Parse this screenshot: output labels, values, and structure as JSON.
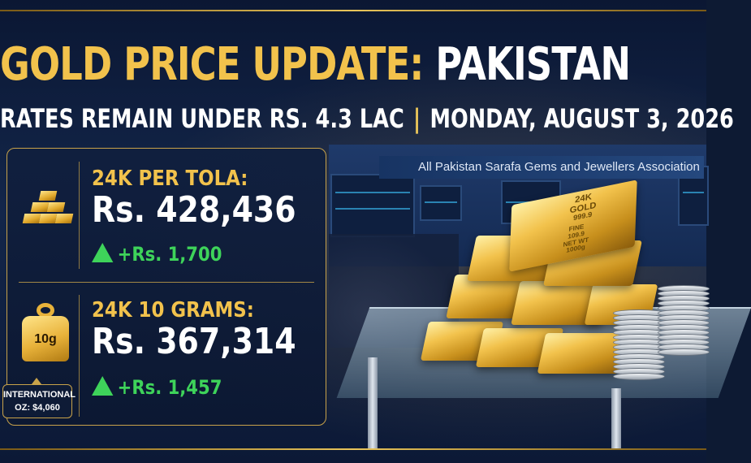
{
  "header": {
    "title_gold": "GOLD PRICE UPDATE: ",
    "title_white": "PAKISTAN",
    "subtitle_left": "RATES REMAIN UNDER RS. 4.3 LAC",
    "subtitle_sep": "|",
    "subtitle_right": "MONDAY, AUGUST 3, 2026"
  },
  "scene": {
    "banner": "All Pakistan Sarafa Gems and Jewellers Association",
    "bar_stamp_1": "24K",
    "bar_stamp_2": "GOLD",
    "bar_stamp_3": "999.9",
    "bar_stamp_4": "FINE",
    "bar_stamp_5": "109.9",
    "bar_stamp_6": "NET WT",
    "bar_stamp_7": "1000g"
  },
  "rates": [
    {
      "label": "24K PER TOLA:",
      "price": "Rs. 428,436",
      "change": "+Rs. 1,700",
      "icon": "gold-bars-icon"
    },
    {
      "label": "24K 10 GRAMS:",
      "price": "Rs. 367,314",
      "change": "+Rs. 1,457",
      "icon": "weight-icon"
    }
  ],
  "weight_icon_text": "10g",
  "international": {
    "line1": "INTERNATIONAL",
    "line2": "OZ: $4,060"
  },
  "colors": {
    "gold": "#f2c24c",
    "up": "#3ed35a",
    "navy": "#0d1a33"
  }
}
